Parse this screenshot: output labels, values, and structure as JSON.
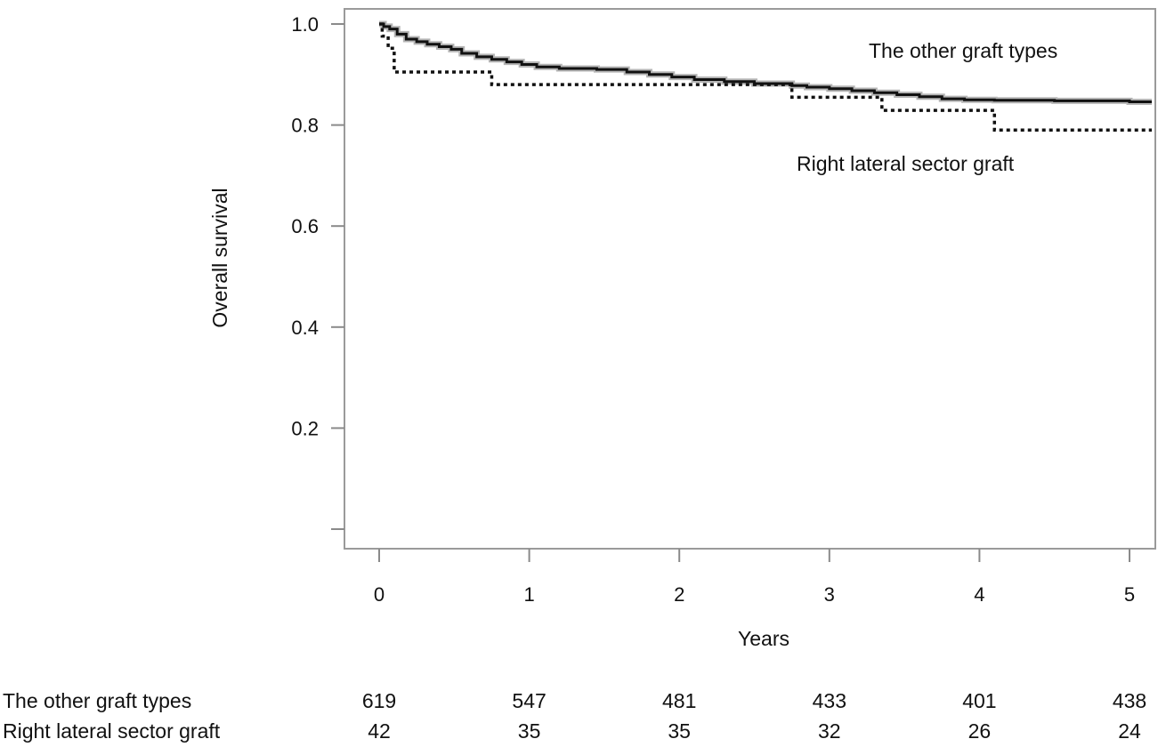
{
  "chart_data": {
    "type": "line",
    "title": "",
    "xlabel": "Years",
    "ylabel": "Overall survival",
    "xlim": [
      0,
      5
    ],
    "ylim": [
      0,
      1.0
    ],
    "x_ticks": [
      0,
      1,
      2,
      3,
      4,
      5
    ],
    "x_tick_labels": [
      "0",
      "1",
      "2",
      "3",
      "4",
      "5"
    ],
    "y_ticks": [
      0.0,
      0.2,
      0.4,
      0.6,
      0.8,
      1.0
    ],
    "y_tick_labels": [
      "",
      "0.2",
      "0.4",
      "0.6",
      "0.8",
      "1.0"
    ],
    "grid": false,
    "series": [
      {
        "name": "The other graft types",
        "style": "solid",
        "color": "#111111",
        "ci_color": "#b5b5b5",
        "x": [
          0,
          0.03,
          0.07,
          0.12,
          0.18,
          0.25,
          0.32,
          0.4,
          0.48,
          0.55,
          0.65,
          0.75,
          0.85,
          0.95,
          1.05,
          1.2,
          1.45,
          1.65,
          1.8,
          1.95,
          2.1,
          2.3,
          2.5,
          2.75,
          2.85,
          3.0,
          3.15,
          3.3,
          3.45,
          3.6,
          3.75,
          3.9,
          4.1,
          4.5,
          5.0
        ],
        "y": [
          1.0,
          0.995,
          0.99,
          0.98,
          0.97,
          0.965,
          0.96,
          0.955,
          0.95,
          0.942,
          0.935,
          0.93,
          0.925,
          0.92,
          0.915,
          0.912,
          0.91,
          0.905,
          0.9,
          0.895,
          0.89,
          0.886,
          0.882,
          0.878,
          0.875,
          0.872,
          0.868,
          0.864,
          0.86,
          0.856,
          0.852,
          0.85,
          0.849,
          0.848,
          0.846
        ]
      },
      {
        "name": "Right lateral sector graft",
        "style": "dotted",
        "color": "#111111",
        "x": [
          0,
          0.02,
          0.06,
          0.1,
          0.75,
          2.75,
          3.35,
          4.1,
          5.0
        ],
        "y": [
          1.0,
          0.976,
          0.952,
          0.905,
          0.88,
          0.855,
          0.829,
          0.79,
          0.79
        ]
      }
    ],
    "annotations": [
      {
        "text": "The other graft types",
        "series": 0
      },
      {
        "text": "Right lateral sector graft",
        "series": 1
      }
    ],
    "risk_table": {
      "time_points": [
        0,
        1,
        2,
        3,
        4,
        5
      ],
      "rows": [
        {
          "label": "The other graft types",
          "counts": [
            "619",
            "547",
            "481",
            "433",
            "401",
            "438"
          ]
        },
        {
          "label": "Right lateral sector graft",
          "counts": [
            "42",
            "35",
            "35",
            "32",
            "26",
            "24"
          ]
        }
      ]
    }
  }
}
